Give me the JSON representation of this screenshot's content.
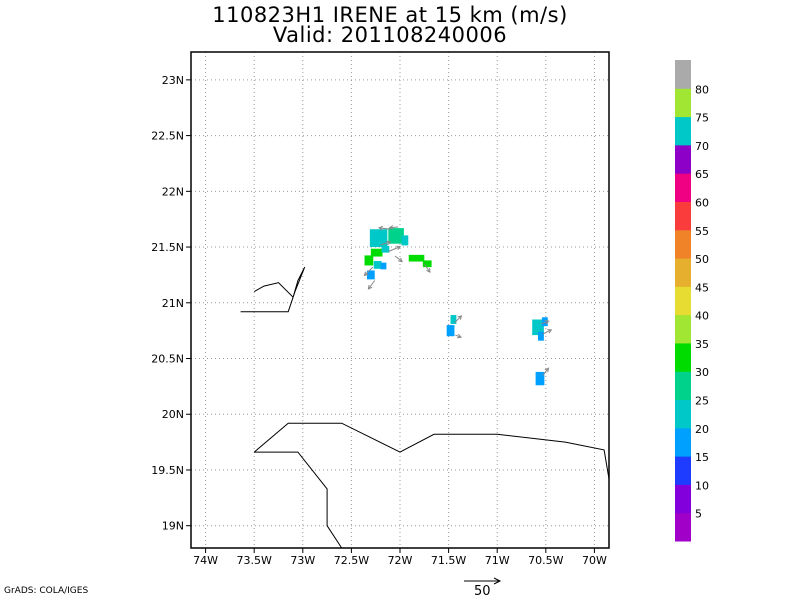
{
  "title_line1": "110823H1 IRENE at 15 km (m/s)",
  "title_line2": "Valid: 201108240006",
  "credit": "GrADS: COLA/IGES",
  "vector_scale_label": "50",
  "chart_data": {
    "type": "heatmap",
    "xlim": [
      -74.15,
      -69.85
    ],
    "ylim": [
      18.8,
      23.25
    ],
    "x_ticks": [
      {
        "value": -74,
        "label": "74W"
      },
      {
        "value": -73.5,
        "label": "73.5W"
      },
      {
        "value": -73,
        "label": "73W"
      },
      {
        "value": -72.5,
        "label": "72.5W"
      },
      {
        "value": -72,
        "label": "72W"
      },
      {
        "value": -71.5,
        "label": "71.5W"
      },
      {
        "value": -71,
        "label": "71W"
      },
      {
        "value": -70.5,
        "label": "70.5W"
      },
      {
        "value": -70,
        "label": "70W"
      }
    ],
    "y_ticks": [
      {
        "value": 19,
        "label": "19N"
      },
      {
        "value": 19.5,
        "label": "19.5N"
      },
      {
        "value": 20,
        "label": "20N"
      },
      {
        "value": 20.5,
        "label": "20.5N"
      },
      {
        "value": 21,
        "label": "21N"
      },
      {
        "value": 21.5,
        "label": "21.5N"
      },
      {
        "value": 22,
        "label": "22N"
      },
      {
        "value": 22.5,
        "label": "22.5N"
      },
      {
        "value": 23,
        "label": "23N"
      }
    ],
    "grid": true,
    "colorbar": {
      "colors": [
        "#a000c8",
        "#8200dc",
        "#1e3cff",
        "#00a0ff",
        "#00c8c8",
        "#00d28c",
        "#00dc00",
        "#a0e632",
        "#e6dc32",
        "#e6af2d",
        "#f08228",
        "#fa3c3c",
        "#f00082",
        "#8c00c8",
        "#00c8c8",
        "#a0e632",
        "#aaaaaa"
      ],
      "labels": [
        "5",
        "10",
        "15",
        "20",
        "25",
        "30",
        "35",
        "40",
        "45",
        "50",
        "55",
        "60",
        "65",
        "70",
        "75",
        "80"
      ]
    },
    "coastlines": [
      [
        [
          -73.5,
          21.1
        ],
        [
          -73.4,
          21.15
        ],
        [
          -73.25,
          21.18
        ],
        [
          -73.1,
          21.05
        ],
        [
          -73.05,
          21.2
        ],
        [
          -72.98,
          21.32
        ],
        [
          -73.08,
          21.1
        ],
        [
          -73.15,
          20.92
        ],
        [
          -73.64,
          20.92
        ]
      ],
      [
        [
          -73.5,
          19.66
        ],
        [
          -73.15,
          19.92
        ],
        [
          -72.6,
          19.92
        ],
        [
          -72.0,
          19.66
        ],
        [
          -71.65,
          19.82
        ],
        [
          -71.0,
          19.82
        ],
        [
          -70.3,
          19.75
        ],
        [
          -69.9,
          19.68
        ],
        [
          -69.85,
          19.42
        ]
      ],
      [
        [
          -73.5,
          19.66
        ],
        [
          -73.05,
          19.66
        ],
        [
          -72.75,
          19.33
        ],
        [
          -72.75,
          19.0
        ],
        [
          -72.6,
          18.8
        ]
      ]
    ],
    "cells": [
      {
        "lon": -72.22,
        "lat": 21.58,
        "w": 0.18,
        "h": 0.16,
        "value": 22
      },
      {
        "lon": -72.04,
        "lat": 21.6,
        "w": 0.16,
        "h": 0.14,
        "value": 25
      },
      {
        "lon": -71.95,
        "lat": 21.56,
        "w": 0.07,
        "h": 0.09,
        "value": 20
      },
      {
        "lon": -72.24,
        "lat": 21.45,
        "w": 0.12,
        "h": 0.07,
        "value": 33
      },
      {
        "lon": -72.15,
        "lat": 21.48,
        "w": 0.08,
        "h": 0.06,
        "value": 22
      },
      {
        "lon": -72.32,
        "lat": 21.38,
        "w": 0.09,
        "h": 0.09,
        "value": 34
      },
      {
        "lon": -72.23,
        "lat": 21.34,
        "w": 0.08,
        "h": 0.07,
        "value": 22
      },
      {
        "lon": -72.17,
        "lat": 21.33,
        "w": 0.06,
        "h": 0.06,
        "value": 15
      },
      {
        "lon": -72.3,
        "lat": 21.25,
        "w": 0.08,
        "h": 0.08,
        "value": 15
      },
      {
        "lon": -71.83,
        "lat": 21.4,
        "w": 0.16,
        "h": 0.06,
        "value": 34
      },
      {
        "lon": -71.72,
        "lat": 21.35,
        "w": 0.09,
        "h": 0.06,
        "value": 34
      },
      {
        "lon": -71.45,
        "lat": 20.85,
        "w": 0.06,
        "h": 0.08,
        "value": 20
      },
      {
        "lon": -71.48,
        "lat": 20.75,
        "w": 0.08,
        "h": 0.1,
        "value": 15
      },
      {
        "lon": -70.58,
        "lat": 20.78,
        "w": 0.12,
        "h": 0.14,
        "value": 20
      },
      {
        "lon": -70.51,
        "lat": 20.83,
        "w": 0.06,
        "h": 0.08,
        "value": 15
      },
      {
        "lon": -70.55,
        "lat": 20.7,
        "w": 0.06,
        "h": 0.08,
        "value": 15
      },
      {
        "lon": -70.56,
        "lat": 20.32,
        "w": 0.09,
        "h": 0.12,
        "value": 15
      }
    ],
    "wind_vectors": [
      {
        "lon": -72.1,
        "lat": 21.66,
        "u": -16,
        "v": 2
      },
      {
        "lon": -72.02,
        "lat": 21.68,
        "u": -12,
        "v": -1
      },
      {
        "lon": -72.2,
        "lat": 21.52,
        "u": 14,
        "v": 4
      },
      {
        "lon": -72.12,
        "lat": 21.46,
        "u": 17,
        "v": 7
      },
      {
        "lon": -72.05,
        "lat": 21.42,
        "u": 10,
        "v": -8
      },
      {
        "lon": -72.28,
        "lat": 21.32,
        "u": -12,
        "v": -12
      },
      {
        "lon": -72.26,
        "lat": 21.2,
        "u": -9,
        "v": -12
      },
      {
        "lon": -71.75,
        "lat": 21.35,
        "u": 8,
        "v": -12
      },
      {
        "lon": -71.44,
        "lat": 20.82,
        "u": 10,
        "v": 10
      },
      {
        "lon": -71.43,
        "lat": 20.71,
        "u": 8,
        "v": -3
      },
      {
        "lon": -70.55,
        "lat": 20.81,
        "u": 11,
        "v": 4
      },
      {
        "lon": -70.53,
        "lat": 20.72,
        "u": 12,
        "v": 6
      },
      {
        "lon": -70.53,
        "lat": 20.35,
        "u": 8,
        "v": 10
      }
    ]
  }
}
